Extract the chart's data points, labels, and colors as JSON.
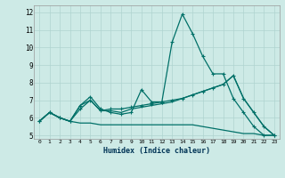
{
  "xlabel": "Humidex (Indice chaleur)",
  "background_color": "#cdeae6",
  "grid_color": "#afd4d0",
  "line_color": "#007068",
  "xlim": [
    -0.5,
    23.5
  ],
  "ylim": [
    4.8,
    12.4
  ],
  "xticks": [
    0,
    1,
    2,
    3,
    4,
    5,
    6,
    7,
    8,
    9,
    10,
    11,
    12,
    13,
    14,
    15,
    16,
    17,
    18,
    19,
    20,
    21,
    22,
    23
  ],
  "yticks": [
    5,
    6,
    7,
    8,
    9,
    10,
    11,
    12
  ],
  "lines": [
    {
      "x": [
        0,
        1,
        2,
        3,
        4,
        5,
        6,
        7,
        8,
        9,
        10,
        11,
        12,
        13,
        14,
        15,
        16,
        17,
        18,
        19,
        20,
        21,
        22,
        23
      ],
      "y": [
        5.8,
        6.3,
        6.0,
        5.8,
        6.7,
        7.2,
        6.5,
        6.3,
        6.2,
        6.3,
        7.6,
        6.9,
        6.9,
        10.3,
        11.9,
        10.8,
        9.5,
        8.5,
        8.5,
        7.1,
        6.3,
        5.5,
        5.0,
        5.0
      ],
      "markers": true
    },
    {
      "x": [
        0,
        1,
        2,
        3,
        4,
        5,
        6,
        7,
        8,
        9,
        10,
        11,
        12,
        13,
        14,
        15,
        16,
        17,
        18,
        19,
        20,
        21,
        22,
        23
      ],
      "y": [
        5.8,
        6.3,
        6.0,
        5.8,
        6.5,
        7.0,
        6.4,
        6.5,
        6.5,
        6.6,
        6.7,
        6.8,
        6.9,
        7.0,
        7.1,
        7.3,
        7.5,
        7.7,
        7.9,
        8.4,
        7.1,
        6.3,
        5.5,
        5.0
      ],
      "markers": true
    },
    {
      "x": [
        0,
        1,
        2,
        3,
        4,
        5,
        6,
        7,
        8,
        9,
        10,
        11,
        12,
        13,
        14,
        15,
        16,
        17,
        18,
        19,
        20,
        21,
        22,
        23
      ],
      "y": [
        5.8,
        6.3,
        6.0,
        5.8,
        5.7,
        5.7,
        5.6,
        5.6,
        5.6,
        5.6,
        5.6,
        5.6,
        5.6,
        5.6,
        5.6,
        5.6,
        5.5,
        5.4,
        5.3,
        5.2,
        5.1,
        5.1,
        5.0,
        5.0
      ],
      "markers": false
    },
    {
      "x": [
        0,
        1,
        2,
        3,
        4,
        5,
        6,
        7,
        8,
        9,
        10,
        11,
        12,
        13,
        14,
        15,
        16,
        17,
        18,
        19,
        20,
        21,
        22,
        23
      ],
      "y": [
        5.8,
        6.3,
        6.0,
        5.8,
        6.7,
        7.0,
        6.4,
        6.4,
        6.3,
        6.5,
        6.6,
        6.7,
        6.8,
        6.9,
        7.1,
        7.3,
        7.5,
        7.7,
        7.9,
        8.4,
        7.1,
        6.3,
        5.5,
        5.0
      ],
      "markers": false
    }
  ]
}
